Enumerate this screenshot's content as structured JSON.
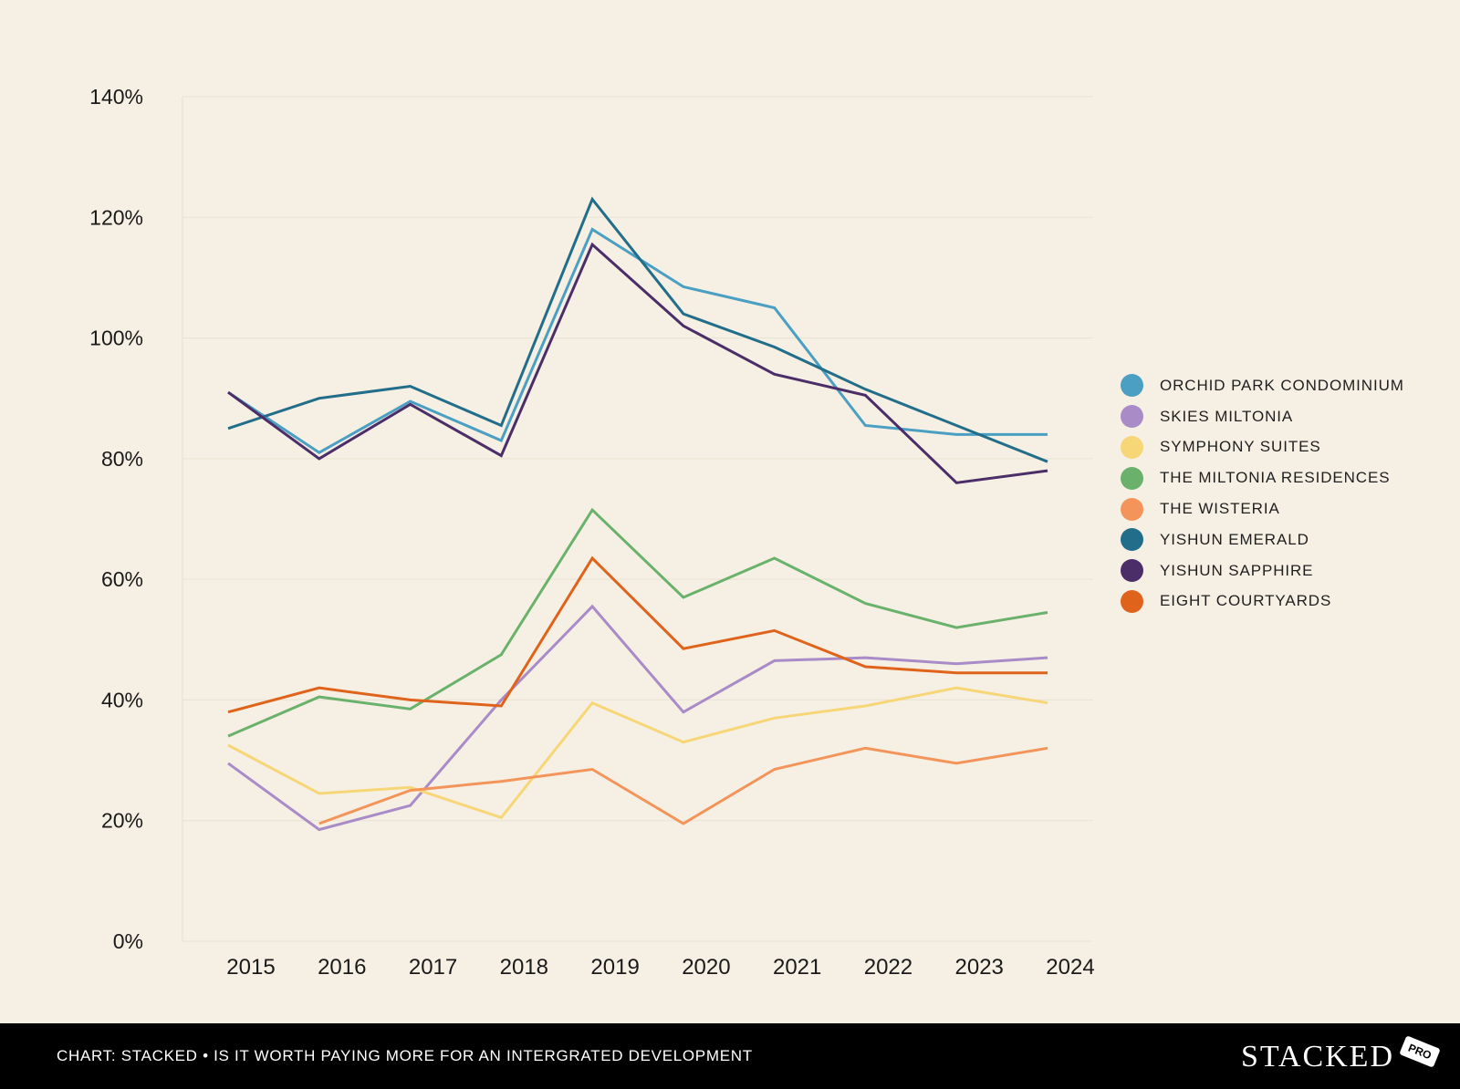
{
  "chart_data": {
    "type": "line",
    "categories": [
      "2015",
      "2016",
      "2017",
      "2018",
      "2019",
      "2020",
      "2021",
      "2022",
      "2023",
      "2024"
    ],
    "yticks": [
      "0%",
      "20%",
      "40%",
      "60%",
      "80%",
      "100%",
      "120%",
      "140%"
    ],
    "ylim": [
      0,
      140
    ],
    "series": [
      {
        "name": "ORCHID PARK CONDOMINIUM",
        "color": "#4a9fc2",
        "values": [
          91,
          81,
          89.5,
          83,
          118,
          108.5,
          105,
          85.5,
          84,
          84
        ]
      },
      {
        "name": "SKIES MILTONIA",
        "color": "#a98bc8",
        "values": [
          29.5,
          18.5,
          22.5,
          40,
          55.5,
          38,
          46.5,
          47,
          46,
          47
        ]
      },
      {
        "name": "SYMPHONY SUITES",
        "color": "#f7d677",
        "values": [
          32.5,
          24.5,
          25.5,
          20.5,
          39.5,
          33,
          37,
          39,
          42,
          39.5
        ]
      },
      {
        "name": "THE MILTONIA RESIDENCES",
        "color": "#6ab26c",
        "values": [
          34,
          40.5,
          38.5,
          47.5,
          71.5,
          57,
          63.5,
          56,
          52,
          54.5
        ]
      },
      {
        "name": "THE WISTERIA",
        "color": "#f3955a",
        "values": [
          null,
          19.5,
          25,
          26.5,
          28.5,
          19.5,
          28.5,
          32,
          29.5,
          32
        ]
      },
      {
        "name": "YISHUN EMERALD",
        "color": "#226e8a",
        "values": [
          85,
          90,
          92,
          85.5,
          123,
          104,
          98.5,
          91.5,
          85.5,
          79.5
        ]
      },
      {
        "name": "YISHUN SAPPHIRE",
        "color": "#4b2d68",
        "values": [
          91,
          80,
          89,
          80.5,
          115.5,
          102,
          94,
          90.5,
          76,
          78
        ]
      },
      {
        "name": "EIGHT COURTYARDS",
        "color": "#e0631b",
        "values": [
          38,
          42,
          40,
          39,
          63.5,
          48.5,
          51.5,
          45.5,
          44.5,
          44.5
        ]
      }
    ]
  },
  "footer": {
    "caption": "CHART: STACKED • IS IT WORTH PAYING MORE FOR AN INTERGRATED DEVELOPMENT",
    "brand": "STACKED",
    "badge": "PRO"
  }
}
